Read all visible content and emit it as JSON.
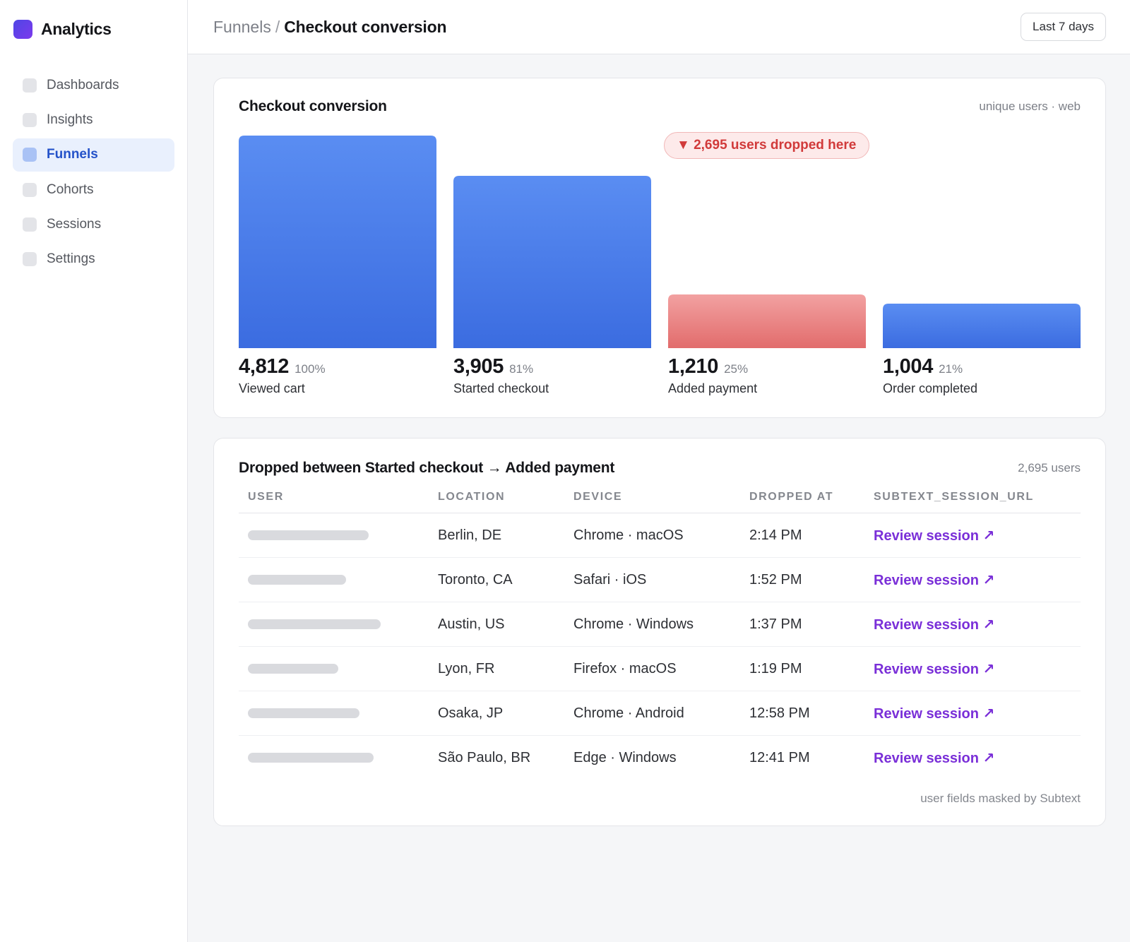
{
  "app": {
    "name": "Analytics"
  },
  "sidebar": {
    "items": [
      {
        "label": "Dashboards",
        "active": false
      },
      {
        "label": "Insights",
        "active": false
      },
      {
        "label": "Funnels",
        "active": true
      },
      {
        "label": "Cohorts",
        "active": false
      },
      {
        "label": "Sessions",
        "active": false
      },
      {
        "label": "Settings",
        "active": false
      }
    ]
  },
  "header": {
    "breadcrumb_parent": "Funnels",
    "breadcrumb_separator": "/",
    "title": "Checkout conversion",
    "date_range": "Last 7 days"
  },
  "funnel": {
    "title": "Checkout conversion",
    "meta": "unique users · web",
    "drop_badge": "▼ 2,695 users dropped here",
    "steps": [
      {
        "count": "4,812",
        "pct": "100%",
        "label": "Viewed cart"
      },
      {
        "count": "3,905",
        "pct": "81%",
        "label": "Started checkout"
      },
      {
        "count": "1,210",
        "pct": "25%",
        "label": "Added payment"
      },
      {
        "count": "1,004",
        "pct": "21%",
        "label": "Order completed"
      }
    ]
  },
  "chart_data": {
    "type": "bar",
    "categories": [
      "Viewed cart",
      "Started checkout",
      "Added payment",
      "Order completed"
    ],
    "values": [
      4812,
      3905,
      1210,
      1004
    ],
    "percentages": [
      100,
      81,
      25,
      21
    ],
    "title": "Checkout conversion",
    "subtitle": "unique users · web",
    "highlighted_category": "Added payment",
    "annotation": "▼ 2,695 users dropped here",
    "ylim": [
      0,
      4812
    ],
    "grid": false,
    "colors": {
      "default": "#4a7be6",
      "highlight": "#e66f6f"
    }
  },
  "dropped": {
    "title": "Dropped between Started checkout → Added payment",
    "count": "2,695 users",
    "columns": [
      "USER",
      "LOCATION",
      "DEVICE",
      "DROPPED AT",
      "SUBTEXT_SESSION_URL"
    ],
    "rows": [
      {
        "location": "Berlin, DE",
        "device": "Chrome · macOS",
        "dropped_at": "2:14 PM",
        "link": "Review session ↗"
      },
      {
        "location": "Toronto, CA",
        "device": "Safari · iOS",
        "dropped_at": "1:52 PM",
        "link": "Review session ↗"
      },
      {
        "location": "Austin, US",
        "device": "Chrome · Windows",
        "dropped_at": "1:37 PM",
        "link": "Review session ↗"
      },
      {
        "location": "Lyon, FR",
        "device": "Firefox · macOS",
        "dropped_at": "1:19 PM",
        "link": "Review session ↗"
      },
      {
        "location": "Osaka, JP",
        "device": "Chrome · Android",
        "dropped_at": "12:58 PM",
        "link": "Review session ↗"
      },
      {
        "location": "São Paulo, BR",
        "device": "Edge · Windows",
        "dropped_at": "12:41 PM",
        "link": "Review session ↗"
      }
    ],
    "footnote": "user fields masked by Subtext"
  },
  "colors": {
    "accent": "#2452c9",
    "link": "#7a2fd8",
    "drop": "#d13a3a"
  }
}
